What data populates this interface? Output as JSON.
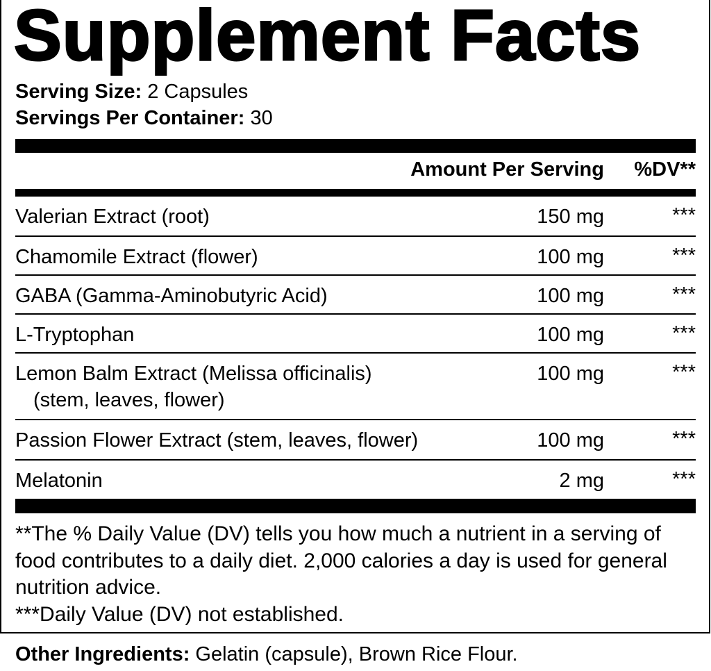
{
  "title": "Supplement Facts",
  "serving_size": {
    "label": "Serving Size:",
    "value": "2 Capsules"
  },
  "servings_per_container": {
    "label": "Servings Per Container:",
    "value": "30"
  },
  "header": {
    "amount": "Amount Per Serving",
    "dv": "%DV**"
  },
  "ingredients": [
    {
      "name": "Valerian Extract (root)",
      "amount": "150 mg",
      "dv": "***"
    },
    {
      "name": "Chamomile Extract (flower)",
      "amount": "100 mg",
      "dv": "***"
    },
    {
      "name": "GABA (Gamma-Aminobutyric Acid)",
      "amount": "100 mg",
      "dv": "***"
    },
    {
      "name": "L-Tryptophan",
      "amount": "100 mg",
      "dv": "***"
    },
    {
      "name": "Lemon Balm Extract (Melissa officinalis)",
      "name_line2": "(stem, leaves, flower)",
      "amount": "100 mg",
      "dv": "***"
    },
    {
      "name": "Passion Flower Extract (stem, leaves, flower)",
      "amount": "100 mg",
      "dv": "***"
    },
    {
      "name": "Melatonin",
      "amount": "2 mg",
      "dv": "***"
    }
  ],
  "footnotes": [
    "**The % Daily Value (DV) tells you how much a nutrient in a serving of food contributes to a daily diet. 2,000 calories a day is used for general nutrition advice.",
    "***Daily Value (DV) not established."
  ],
  "other_ingredients": {
    "label": "Other Ingredients:",
    "value": "Gelatin (capsule), Brown Rice Flour."
  }
}
